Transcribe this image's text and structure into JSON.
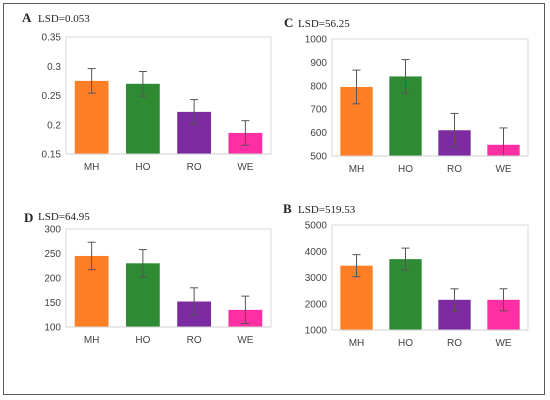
{
  "figure": {
    "categories": [
      "MH",
      "HO",
      "RO",
      "WE"
    ],
    "colors": {
      "MH": "#ff7f27",
      "HO": "#2e8b34",
      "RO": "#7b2aa0",
      "WE": "#ff2fa3"
    },
    "frame_color": "#5a5a5a"
  },
  "chart_data": [
    {
      "type": "bar",
      "panel": "A",
      "annotation": "LSD=0.053",
      "categories": [
        "MH",
        "HO",
        "RO",
        "WE"
      ],
      "values": [
        0.275,
        0.27,
        0.222,
        0.186
      ],
      "errors": [
        0.021,
        0.021,
        0.021,
        0.021
      ],
      "ylim": [
        0.15,
        0.35
      ],
      "yticks": [
        "0.15",
        "0.2",
        "0.25",
        "0.3",
        "0.35"
      ],
      "ytick_values": [
        0.15,
        0.2,
        0.25,
        0.3,
        0.35
      ],
      "grid": false
    },
    {
      "type": "bar",
      "panel": "C",
      "annotation": "LSD=56.25",
      "categories": [
        "MH",
        "HO",
        "RO",
        "WE"
      ],
      "values": [
        795,
        840,
        610,
        548
      ],
      "errors": [
        72,
        72,
        72,
        72
      ],
      "ylim": [
        500,
        1000
      ],
      "yticks": [
        "500",
        "600",
        "700",
        "800",
        "900",
        "1000"
      ],
      "ytick_values": [
        500,
        600,
        700,
        800,
        900,
        1000
      ],
      "grid": false
    },
    {
      "type": "bar",
      "panel": "D",
      "annotation": "LSD=64.95",
      "categories": [
        "MH",
        "HO",
        "RO",
        "WE"
      ],
      "values": [
        245,
        230,
        152,
        135
      ],
      "errors": [
        28,
        28,
        28,
        28
      ],
      "ylim": [
        100,
        300
      ],
      "yticks": [
        "100",
        "150",
        "200",
        "250",
        "300"
      ],
      "ytick_values": [
        100,
        150,
        200,
        250,
        300
      ],
      "grid": false
    },
    {
      "type": "bar",
      "panel": "B",
      "annotation": "LSD=519.53",
      "categories": [
        "MH",
        "HO",
        "RO",
        "WE"
      ],
      "values": [
        3450,
        3700,
        2150,
        2150
      ],
      "errors": [
        420,
        420,
        420,
        420
      ],
      "ylim": [
        1000,
        5000
      ],
      "yticks": [
        "1000",
        "2000",
        "3000",
        "4000",
        "5000"
      ],
      "ytick_values": [
        1000,
        2000,
        3000,
        4000,
        5000
      ],
      "grid": false
    }
  ]
}
